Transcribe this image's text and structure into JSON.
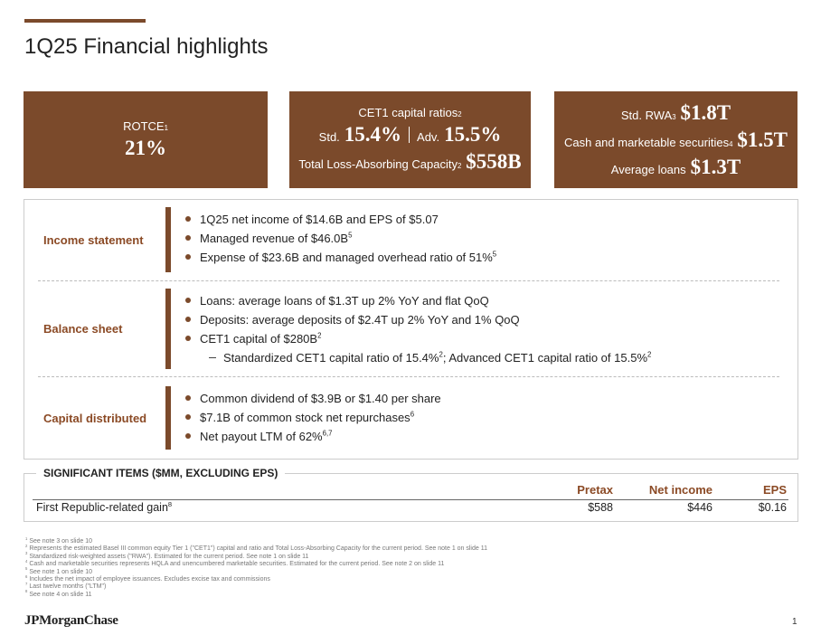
{
  "title": "1Q25 Financial highlights",
  "kpi_boxes": [
    {
      "lines": [
        [
          {
            "text": "ROTCE"
          },
          {
            "sup": "1"
          }
        ],
        [
          {
            "big": "21%"
          }
        ]
      ]
    },
    {
      "lines": [
        [
          {
            "text": "CET1 capital ratios"
          },
          {
            "sup": "2"
          }
        ],
        [
          {
            "text": "Std."
          },
          {
            "big": "15.4%"
          },
          {
            "text": "Adv."
          },
          {
            "big": "15.5%"
          }
        ],
        [
          {
            "text": "Total Loss-Absorbing Capacity"
          },
          {
            "sup": "2"
          },
          {
            "big": "$558B"
          }
        ]
      ]
    },
    {
      "lines": [
        [
          {
            "text": "Std. RWA"
          },
          {
            "sup": "3"
          },
          {
            "big": "$1.8T"
          }
        ],
        [
          {
            "text": "Cash and marketable securities"
          },
          {
            "sup": "4"
          },
          {
            "big": "$1.5T"
          }
        ],
        [
          {
            "text": "Average loans"
          },
          {
            "big": "$1.3T"
          }
        ]
      ]
    }
  ],
  "sections": [
    {
      "heading": "Income statement",
      "bullets": [
        {
          "parts": [
            {
              "text": "1Q25 net income of $14.6B and EPS of $5.07"
            }
          ]
        },
        {
          "parts": [
            {
              "text": "Managed revenue of $46.0B"
            },
            {
              "sup": "5"
            }
          ]
        },
        {
          "parts": [
            {
              "text": "Expense of $23.6B and managed overhead ratio of 51%"
            },
            {
              "sup": "5"
            }
          ]
        }
      ]
    },
    {
      "heading": "Balance sheet",
      "bullets": [
        {
          "parts": [
            {
              "text": "Loans: average loans of $1.3T up 2% YoY and flat QoQ"
            }
          ]
        },
        {
          "parts": [
            {
              "text": "Deposits: average deposits of $2.4T up 2% YoY and 1% QoQ"
            }
          ]
        },
        {
          "parts": [
            {
              "text": "CET1 capital of $280B"
            },
            {
              "sup": "2"
            }
          ],
          "sub": [
            {
              "parts": [
                {
                  "text": "Standardized CET1 capital ratio of 15.4%"
                },
                {
                  "sup": "2"
                },
                {
                  "text": "; Advanced CET1 capital ratio of 15.5%"
                },
                {
                  "sup": "2"
                }
              ]
            }
          ]
        }
      ]
    },
    {
      "heading": "Capital distributed",
      "bullets": [
        {
          "parts": [
            {
              "text": "Common dividend of $3.9B or $1.40 per share"
            }
          ]
        },
        {
          "parts": [
            {
              "text": "$7.1B of common stock net repurchases"
            },
            {
              "sup": "6"
            }
          ]
        },
        {
          "parts": [
            {
              "text": "Net payout LTM of 62%"
            },
            {
              "sup": "6,7"
            }
          ]
        }
      ]
    }
  ],
  "significant_items": {
    "title": "SIGNIFICANT ITEMS ($MM, EXCLUDING EPS)",
    "columns": [
      "Pretax",
      "Net income",
      "EPS"
    ],
    "rows": [
      {
        "label": [
          {
            "text": "First Republic-related gain"
          },
          {
            "sup": "8"
          }
        ],
        "values": [
          "$588",
          "$446",
          "$0.16"
        ]
      }
    ]
  },
  "footnotes": [
    {
      "num": "1",
      "text": "See note 3 on slide 10"
    },
    {
      "num": "2",
      "text": "Represents the estimated Basel III common equity Tier 1 (\"CET1\") capital and ratio and Total Loss-Absorbing Capacity for the current period. See note 1 on slide 11"
    },
    {
      "num": "3",
      "text": "Standardized risk-weighted assets (\"RWA\"). Estimated for the current period. See note 1 on slide 11"
    },
    {
      "num": "4",
      "text": "Cash and marketable securities represents HQLA and unencumbered marketable securities. Estimated for the current period. See note 2 on slide 11"
    },
    {
      "num": "5",
      "text": "See note 1 on slide 10"
    },
    {
      "num": "6",
      "text": "Includes the net impact of employee issuances. Excludes excise tax and commissions"
    },
    {
      "num": "7",
      "text": "Last twelve months (\"LTM\")"
    },
    {
      "num": "8",
      "text": "See note 4 on slide 11"
    }
  ],
  "logo": "JPMorganChase",
  "page_number": "1"
}
